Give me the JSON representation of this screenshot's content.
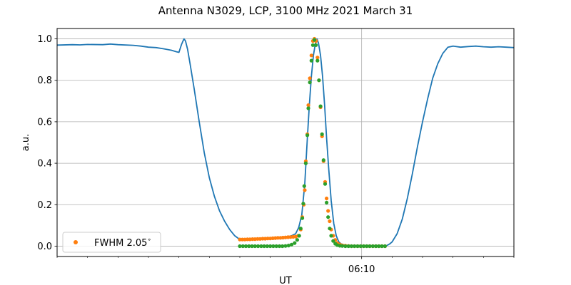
{
  "chart_data": {
    "type": "line+scatter",
    "title": "Antenna N3029, LCP, 3100 MHz 2021 March 31",
    "xlabel": "UT",
    "ylabel": "a.u.",
    "x_unit": "UT time (HH:MM:SS)",
    "xlim": [
      "06:00:00",
      "06:15:00"
    ],
    "ylim": [
      -0.05,
      1.05
    ],
    "x_ticks": [
      {
        "t": "06:10:00",
        "label": "06:10"
      }
    ],
    "x_minor_ticks": [
      "06:00:00",
      "06:01:00",
      "06:02:00",
      "06:03:00",
      "06:04:00",
      "06:05:00",
      "06:06:00",
      "06:07:00",
      "06:08:00",
      "06:09:00",
      "06:11:00",
      "06:12:00",
      "06:13:00",
      "06:14:00",
      "06:15:00"
    ],
    "y_ticks": [
      0.0,
      0.2,
      0.4,
      0.6,
      0.8,
      1.0
    ],
    "y_tick_labels": [
      "0.0",
      "0.2",
      "0.4",
      "0.6",
      "0.8",
      "1.0"
    ],
    "grid": "on",
    "legend": {
      "placement": "lower-left",
      "entries": [
        {
          "label": "FWHM 2.05$^\\circ$",
          "display": "FWHM 2.05",
          "degree": "∘",
          "color": "#ff7f0e"
        }
      ]
    },
    "colors": {
      "line": "#1f77b4",
      "scatter_orange": "#ff7f0e",
      "scatter_green": "#2ca02c",
      "grid": "#b0b0b0"
    },
    "series": [
      {
        "kind": "line",
        "color": "#1f77b4",
        "points": [
          {
            "t": "06:00:00",
            "y": 0.97
          },
          {
            "t": "06:00:30",
            "y": 0.972
          },
          {
            "t": "06:00:45",
            "y": 0.971
          },
          {
            "t": "06:01:00",
            "y": 0.973
          },
          {
            "t": "06:01:30",
            "y": 0.972
          },
          {
            "t": "06:01:45",
            "y": 0.975
          },
          {
            "t": "06:02:00",
            "y": 0.972
          },
          {
            "t": "06:02:30",
            "y": 0.969
          },
          {
            "t": "06:02:45",
            "y": 0.965
          },
          {
            "t": "06:03:00",
            "y": 0.96
          },
          {
            "t": "06:03:15",
            "y": 0.958
          },
          {
            "t": "06:03:30",
            "y": 0.952
          },
          {
            "t": "06:03:45",
            "y": 0.945
          },
          {
            "t": "06:03:55",
            "y": 0.938
          },
          {
            "t": "06:04:00",
            "y": 0.935
          },
          {
            "t": "06:04:05",
            "y": 0.972
          },
          {
            "t": "06:04:08",
            "y": 0.99
          },
          {
            "t": "06:04:10",
            "y": 1.0
          },
          {
            "t": "06:04:13",
            "y": 0.99
          },
          {
            "t": "06:04:17",
            "y": 0.95
          },
          {
            "t": "06:04:22",
            "y": 0.88
          },
          {
            "t": "06:04:30",
            "y": 0.76
          },
          {
            "t": "06:04:40",
            "y": 0.6
          },
          {
            "t": "06:04:50",
            "y": 0.45
          },
          {
            "t": "06:05:00",
            "y": 0.33
          },
          {
            "t": "06:05:10",
            "y": 0.24
          },
          {
            "t": "06:05:20",
            "y": 0.17
          },
          {
            "t": "06:05:30",
            "y": 0.12
          },
          {
            "t": "06:05:40",
            "y": 0.08
          },
          {
            "t": "06:05:50",
            "y": 0.05
          },
          {
            "t": "06:06:00",
            "y": 0.032
          },
          {
            "t": "06:06:20",
            "y": 0.03
          },
          {
            "t": "06:06:40",
            "y": 0.033
          },
          {
            "t": "06:07:00",
            "y": 0.038
          },
          {
            "t": "06:07:20",
            "y": 0.042
          },
          {
            "t": "06:07:40",
            "y": 0.048
          },
          {
            "t": "06:07:50",
            "y": 0.06
          },
          {
            "t": "06:07:56",
            "y": 0.09
          },
          {
            "t": "06:08:02",
            "y": 0.15
          },
          {
            "t": "06:08:08",
            "y": 0.3
          },
          {
            "t": "06:08:13",
            "y": 0.52
          },
          {
            "t": "06:08:17",
            "y": 0.68
          },
          {
            "t": "06:08:21",
            "y": 0.82
          },
          {
            "t": "06:08:25",
            "y": 0.92
          },
          {
            "t": "06:08:29",
            "y": 0.98
          },
          {
            "t": "06:08:32",
            "y": 1.0
          },
          {
            "t": "06:08:35",
            "y": 0.98
          },
          {
            "t": "06:08:39",
            "y": 0.92
          },
          {
            "t": "06:08:43",
            "y": 0.82
          },
          {
            "t": "06:08:47",
            "y": 0.68
          },
          {
            "t": "06:08:51",
            "y": 0.52
          },
          {
            "t": "06:08:55",
            "y": 0.38
          },
          {
            "t": "06:09:00",
            "y": 0.22
          },
          {
            "t": "06:09:05",
            "y": 0.11
          },
          {
            "t": "06:09:10",
            "y": 0.05
          },
          {
            "t": "06:09:15",
            "y": 0.02
          },
          {
            "t": "06:09:20",
            "y": 0.01
          },
          {
            "t": "06:09:30",
            "y": 0.002
          },
          {
            "t": "06:09:45",
            "y": 0.0
          },
          {
            "t": "06:10:00",
            "y": -0.002
          },
          {
            "t": "06:10:15",
            "y": 0.0
          },
          {
            "t": "06:10:30",
            "y": 0.0
          },
          {
            "t": "06:10:45",
            "y": -0.003
          },
          {
            "t": "06:10:55",
            "y": 0.01
          },
          {
            "t": "06:11:00",
            "y": 0.02
          },
          {
            "t": "06:11:10",
            "y": 0.06
          },
          {
            "t": "06:11:20",
            "y": 0.13
          },
          {
            "t": "06:11:30",
            "y": 0.23
          },
          {
            "t": "06:11:40",
            "y": 0.35
          },
          {
            "t": "06:11:50",
            "y": 0.48
          },
          {
            "t": "06:12:00",
            "y": 0.6
          },
          {
            "t": "06:12:10",
            "y": 0.71
          },
          {
            "t": "06:12:20",
            "y": 0.81
          },
          {
            "t": "06:12:30",
            "y": 0.88
          },
          {
            "t": "06:12:40",
            "y": 0.93
          },
          {
            "t": "06:12:50",
            "y": 0.96
          },
          {
            "t": "06:13:00",
            "y": 0.965
          },
          {
            "t": "06:13:15",
            "y": 0.96
          },
          {
            "t": "06:13:30",
            "y": 0.963
          },
          {
            "t": "06:13:45",
            "y": 0.965
          },
          {
            "t": "06:14:00",
            "y": 0.962
          },
          {
            "t": "06:14:15",
            "y": 0.96
          },
          {
            "t": "06:14:30",
            "y": 0.962
          },
          {
            "t": "06:14:45",
            "y": 0.96
          },
          {
            "t": "06:15:00",
            "y": 0.958
          }
        ]
      },
      {
        "kind": "scatter",
        "name": "FWHM 2.05$^\\circ$",
        "color": "#ff7f0e",
        "points": [
          {
            "t": "06:06:00",
            "y": 0.032
          },
          {
            "t": "06:06:05",
            "y": 0.032
          },
          {
            "t": "06:06:10",
            "y": 0.032
          },
          {
            "t": "06:06:15",
            "y": 0.033
          },
          {
            "t": "06:06:20",
            "y": 0.033
          },
          {
            "t": "06:06:25",
            "y": 0.034
          },
          {
            "t": "06:06:30",
            "y": 0.034
          },
          {
            "t": "06:06:35",
            "y": 0.035
          },
          {
            "t": "06:06:40",
            "y": 0.035
          },
          {
            "t": "06:06:45",
            "y": 0.036
          },
          {
            "t": "06:06:50",
            "y": 0.036
          },
          {
            "t": "06:06:55",
            "y": 0.037
          },
          {
            "t": "06:07:00",
            "y": 0.037
          },
          {
            "t": "06:07:05",
            "y": 0.038
          },
          {
            "t": "06:07:10",
            "y": 0.039
          },
          {
            "t": "06:07:15",
            "y": 0.04
          },
          {
            "t": "06:07:20",
            "y": 0.04
          },
          {
            "t": "06:07:25",
            "y": 0.041
          },
          {
            "t": "06:07:30",
            "y": 0.042
          },
          {
            "t": "06:07:35",
            "y": 0.043
          },
          {
            "t": "06:07:40",
            "y": 0.044
          },
          {
            "t": "06:07:45",
            "y": 0.045
          },
          {
            "t": "06:07:50",
            "y": 0.046
          },
          {
            "t": "06:07:55",
            "y": 0.05
          },
          {
            "t": "06:08:00",
            "y": 0.08
          },
          {
            "t": "06:08:03",
            "y": 0.14
          },
          {
            "t": "06:08:06",
            "y": 0.2
          },
          {
            "t": "06:08:08",
            "y": 0.27
          },
          {
            "t": "06:08:10",
            "y": 0.41
          },
          {
            "t": "06:08:13",
            "y": 0.54
          },
          {
            "t": "06:08:15",
            "y": 0.68
          },
          {
            "t": "06:08:18",
            "y": 0.81
          },
          {
            "t": "06:08:21",
            "y": 0.92
          },
          {
            "t": "06:08:24",
            "y": 0.99
          },
          {
            "t": "06:08:27",
            "y": 1.0
          },
          {
            "t": "06:08:30",
            "y": 0.99
          },
          {
            "t": "06:08:33",
            "y": 0.91
          },
          {
            "t": "06:08:36",
            "y": 0.8
          },
          {
            "t": "06:08:39",
            "y": 0.67
          },
          {
            "t": "06:08:42",
            "y": 0.53
          },
          {
            "t": "06:08:45",
            "y": 0.41
          },
          {
            "t": "06:08:48",
            "y": 0.31
          },
          {
            "t": "06:08:51",
            "y": 0.23
          },
          {
            "t": "06:08:54",
            "y": 0.17
          },
          {
            "t": "06:08:57",
            "y": 0.12
          },
          {
            "t": "06:09:00",
            "y": 0.08
          },
          {
            "t": "06:09:04",
            "y": 0.05
          },
          {
            "t": "06:09:08",
            "y": 0.03
          },
          {
            "t": "06:09:12",
            "y": 0.015
          },
          {
            "t": "06:09:17",
            "y": 0.008
          },
          {
            "t": "06:09:22",
            "y": 0.004
          },
          {
            "t": "06:09:28",
            "y": 0.002
          },
          {
            "t": "06:09:34",
            "y": 0.001
          },
          {
            "t": "06:09:40",
            "y": 0.0
          },
          {
            "t": "06:09:46",
            "y": 0.0
          },
          {
            "t": "06:09:52",
            "y": 0.0
          },
          {
            "t": "06:09:58",
            "y": 0.0
          },
          {
            "t": "06:10:04",
            "y": 0.0
          },
          {
            "t": "06:10:10",
            "y": 0.0
          },
          {
            "t": "06:10:16",
            "y": 0.0
          },
          {
            "t": "06:10:22",
            "y": 0.0
          },
          {
            "t": "06:10:28",
            "y": 0.0
          },
          {
            "t": "06:10:34",
            "y": 0.0
          },
          {
            "t": "06:10:40",
            "y": 0.0
          },
          {
            "t": "06:10:46",
            "y": 0.0
          }
        ]
      },
      {
        "kind": "scatter",
        "color": "#2ca02c",
        "points": [
          {
            "t": "06:06:00",
            "y": 0.0
          },
          {
            "t": "06:06:06",
            "y": 0.0
          },
          {
            "t": "06:06:12",
            "y": 0.0
          },
          {
            "t": "06:06:18",
            "y": 0.0
          },
          {
            "t": "06:06:24",
            "y": 0.0
          },
          {
            "t": "06:06:30",
            "y": 0.0
          },
          {
            "t": "06:06:36",
            "y": 0.0
          },
          {
            "t": "06:06:42",
            "y": 0.0
          },
          {
            "t": "06:06:48",
            "y": 0.0
          },
          {
            "t": "06:06:54",
            "y": 0.0
          },
          {
            "t": "06:07:00",
            "y": 0.0
          },
          {
            "t": "06:07:06",
            "y": 0.0
          },
          {
            "t": "06:07:12",
            "y": 0.0
          },
          {
            "t": "06:07:18",
            "y": 0.0
          },
          {
            "t": "06:07:24",
            "y": 0.0
          },
          {
            "t": "06:07:30",
            "y": 0.001
          },
          {
            "t": "06:07:36",
            "y": 0.003
          },
          {
            "t": "06:07:42",
            "y": 0.007
          },
          {
            "t": "06:07:48",
            "y": 0.015
          },
          {
            "t": "06:07:53",
            "y": 0.03
          },
          {
            "t": "06:07:57",
            "y": 0.05
          },
          {
            "t": "06:08:00",
            "y": 0.085
          },
          {
            "t": "06:08:03",
            "y": 0.135
          },
          {
            "t": "06:08:05",
            "y": 0.205
          },
          {
            "t": "06:08:07",
            "y": 0.29
          },
          {
            "t": "06:08:10",
            "y": 0.4
          },
          {
            "t": "06:08:13",
            "y": 0.535
          },
          {
            "t": "06:08:15",
            "y": 0.665
          },
          {
            "t": "06:08:18",
            "y": 0.79
          },
          {
            "t": "06:08:21",
            "y": 0.895
          },
          {
            "t": "06:08:24",
            "y": 0.97
          },
          {
            "t": "06:08:27",
            "y": 0.995
          },
          {
            "t": "06:08:30",
            "y": 0.97
          },
          {
            "t": "06:08:33",
            "y": 0.895
          },
          {
            "t": "06:08:36",
            "y": 0.8
          },
          {
            "t": "06:08:39",
            "y": 0.675
          },
          {
            "t": "06:08:42",
            "y": 0.54
          },
          {
            "t": "06:08:45",
            "y": 0.415
          },
          {
            "t": "06:08:48",
            "y": 0.3
          },
          {
            "t": "06:08:51",
            "y": 0.21
          },
          {
            "t": "06:08:54",
            "y": 0.14
          },
          {
            "t": "06:08:57",
            "y": 0.085
          },
          {
            "t": "06:09:00",
            "y": 0.05
          },
          {
            "t": "06:09:04",
            "y": 0.025
          },
          {
            "t": "06:09:08",
            "y": 0.012
          },
          {
            "t": "06:09:12",
            "y": 0.005
          },
          {
            "t": "06:09:17",
            "y": 0.002
          },
          {
            "t": "06:09:22",
            "y": 0.001
          },
          {
            "t": "06:09:28",
            "y": 0.0
          },
          {
            "t": "06:09:34",
            "y": 0.0
          },
          {
            "t": "06:09:40",
            "y": 0.0
          },
          {
            "t": "06:09:46",
            "y": 0.0
          },
          {
            "t": "06:09:52",
            "y": 0.0
          },
          {
            "t": "06:09:58",
            "y": 0.0
          },
          {
            "t": "06:10:04",
            "y": 0.0
          },
          {
            "t": "06:10:10",
            "y": 0.0
          },
          {
            "t": "06:10:16",
            "y": 0.0
          },
          {
            "t": "06:10:22",
            "y": 0.0
          },
          {
            "t": "06:10:28",
            "y": 0.0
          },
          {
            "t": "06:10:34",
            "y": 0.0
          },
          {
            "t": "06:10:40",
            "y": 0.0
          },
          {
            "t": "06:10:46",
            "y": 0.0
          }
        ]
      }
    ]
  }
}
